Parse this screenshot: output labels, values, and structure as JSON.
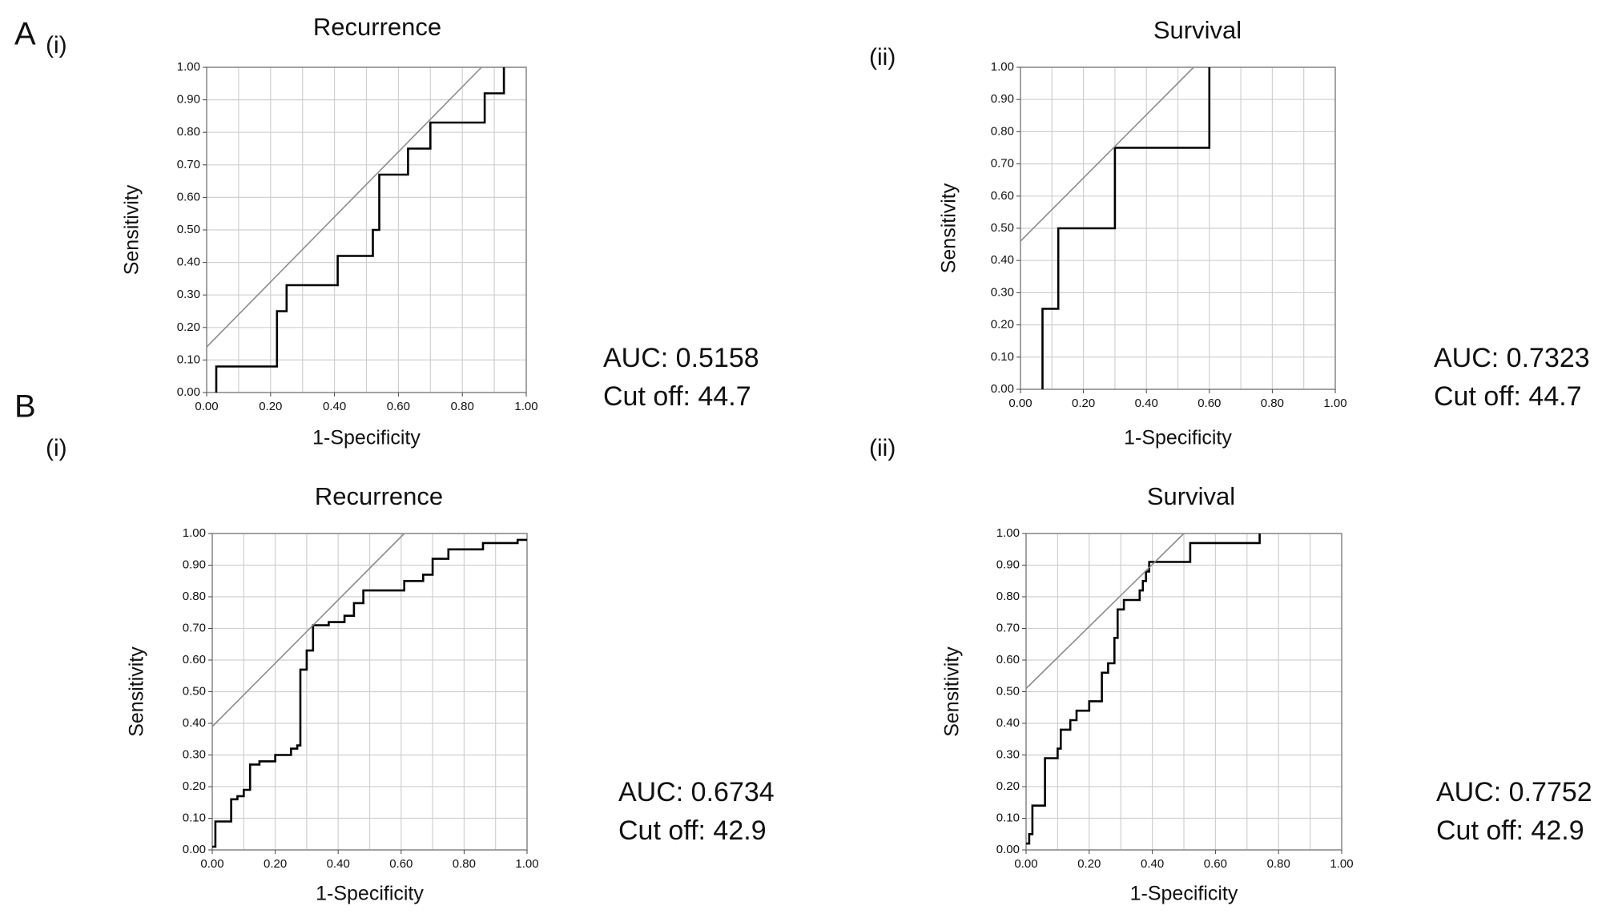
{
  "chart_data": [
    {
      "type": "line",
      "panel": "A",
      "subpanel": "(i)",
      "title": "Recurrence",
      "xlabel": "1-Specificity",
      "ylabel": "Sensitivity",
      "xlim": [
        0,
        1
      ],
      "ylim": [
        0,
        1
      ],
      "grid": true,
      "xticks": [
        {
          "value": 0,
          "label": "0.00"
        },
        {
          "value": 0.2,
          "label": "0.20"
        },
        {
          "value": 0.4,
          "label": "0.40"
        },
        {
          "value": 0.6,
          "label": "0.60"
        },
        {
          "value": 0.8,
          "label": "0.80"
        },
        {
          "value": 1,
          "label": "1.00"
        }
      ],
      "xminorticks": [
        0.1,
        0.3,
        0.5,
        0.7,
        0.9
      ],
      "yticks": [
        {
          "value": 0,
          "label": "0.00"
        },
        {
          "value": 0.1,
          "label": "0.10"
        },
        {
          "value": 0.2,
          "label": "0.20"
        },
        {
          "value": 0.3,
          "label": "0.30"
        },
        {
          "value": 0.4,
          "label": "0.40"
        },
        {
          "value": 0.5,
          "label": "0.50"
        },
        {
          "value": 0.6,
          "label": "0.60"
        },
        {
          "value": 0.7,
          "label": "0.70"
        },
        {
          "value": 0.8,
          "label": "0.80"
        },
        {
          "value": 0.9,
          "label": "0.90"
        },
        {
          "value": 1,
          "label": "1.00"
        }
      ],
      "series": [
        {
          "color": "#000000",
          "x": [
            0.03,
            0.03,
            0.22,
            0.22,
            0.25,
            0.25,
            0.41,
            0.41,
            0.52,
            0.52,
            0.54,
            0.54,
            0.63,
            0.63,
            0.7,
            0.7,
            0.87,
            0.87,
            0.93,
            0.93
          ],
          "values": [
            0,
            0.08,
            0.08,
            0.25,
            0.25,
            0.33,
            0.33,
            0.42,
            0.42,
            0.5,
            0.5,
            0.67,
            0.67,
            0.75,
            0.75,
            0.83,
            0.83,
            0.92,
            0.92,
            1.0
          ]
        },
        {
          "color": "#8c8c8c",
          "x": [
            0,
            0.86
          ],
          "values": [
            0.14,
            1.0
          ]
        }
      ],
      "annotations": [
        "AUC: 0.5158",
        "Cut off: 44.7"
      ]
    },
    {
      "type": "line",
      "subpanel": "(ii)",
      "title": "Survival",
      "xlabel": "1-Specificity",
      "ylabel": "Sensitivity",
      "xlim": [
        0,
        1
      ],
      "ylim": [
        0,
        1
      ],
      "grid": true,
      "xticks": [
        {
          "value": 0,
          "label": "0.00"
        },
        {
          "value": 0.2,
          "label": "0.20"
        },
        {
          "value": 0.4,
          "label": "0.40"
        },
        {
          "value": 0.6,
          "label": "0.60"
        },
        {
          "value": 0.8,
          "label": "0.80"
        },
        {
          "value": 1,
          "label": "1.00"
        }
      ],
      "xminorticks": [
        0.1,
        0.3,
        0.5,
        0.7,
        0.9
      ],
      "yticks": [
        {
          "value": 0,
          "label": "0.00"
        },
        {
          "value": 0.1,
          "label": "0.10"
        },
        {
          "value": 0.2,
          "label": "0.20"
        },
        {
          "value": 0.3,
          "label": "0.30"
        },
        {
          "value": 0.4,
          "label": "0.40"
        },
        {
          "value": 0.5,
          "label": "0.50"
        },
        {
          "value": 0.6,
          "label": "0.60"
        },
        {
          "value": 0.7,
          "label": "0.70"
        },
        {
          "value": 0.8,
          "label": "0.80"
        },
        {
          "value": 0.9,
          "label": "0.90"
        },
        {
          "value": 1,
          "label": "1.00"
        }
      ],
      "series": [
        {
          "color": "#000000",
          "x": [
            0.07,
            0.07,
            0.12,
            0.12,
            0.3,
            0.3,
            0.6,
            0.6
          ],
          "values": [
            0,
            0.25,
            0.25,
            0.5,
            0.5,
            0.75,
            0.75,
            1.0
          ]
        },
        {
          "color": "#8c8c8c",
          "x": [
            0,
            0.55
          ],
          "values": [
            0.46,
            1.0
          ]
        }
      ],
      "annotations": [
        "AUC: 0.7323",
        "Cut off: 44.7"
      ]
    },
    {
      "type": "line",
      "panel": "B",
      "subpanel": "(i)",
      "title": "Recurrence",
      "xlabel": "1-Specificity",
      "ylabel": "Sensitivity",
      "xlim": [
        0,
        1
      ],
      "ylim": [
        0,
        1
      ],
      "grid": true,
      "xticks": [
        {
          "value": 0,
          "label": "0.00"
        },
        {
          "value": 0.2,
          "label": "0.20"
        },
        {
          "value": 0.4,
          "label": "0.40"
        },
        {
          "value": 0.6,
          "label": "0.60"
        },
        {
          "value": 0.8,
          "label": "0.80"
        },
        {
          "value": 1,
          "label": "1.00"
        }
      ],
      "xminorticks": [
        0.1,
        0.3,
        0.5,
        0.7,
        0.9
      ],
      "yticks": [
        {
          "value": 0,
          "label": "0.00"
        },
        {
          "value": 0.1,
          "label": "0.10"
        },
        {
          "value": 0.2,
          "label": "0.20"
        },
        {
          "value": 0.3,
          "label": "0.30"
        },
        {
          "value": 0.4,
          "label": "0.40"
        },
        {
          "value": 0.5,
          "label": "0.50"
        },
        {
          "value": 0.6,
          "label": "0.60"
        },
        {
          "value": 0.7,
          "label": "0.70"
        },
        {
          "value": 0.8,
          "label": "0.80"
        },
        {
          "value": 0.9,
          "label": "0.90"
        },
        {
          "value": 1,
          "label": "1.00"
        }
      ],
      "series": [
        {
          "color": "#000000",
          "x": [
            0,
            0.01,
            0.01,
            0.06,
            0.06,
            0.08,
            0.08,
            0.1,
            0.1,
            0.12,
            0.12,
            0.15,
            0.15,
            0.2,
            0.2,
            0.25,
            0.25,
            0.27,
            0.27,
            0.28,
            0.28,
            0.3,
            0.3,
            0.32,
            0.32,
            0.37,
            0.37,
            0.42,
            0.42,
            0.45,
            0.45,
            0.48,
            0.48,
            0.61,
            0.61,
            0.67,
            0.67,
            0.7,
            0.7,
            0.75,
            0.75,
            0.86,
            0.86,
            0.97,
            0.97,
            1.0
          ],
          "values": [
            0.01,
            0.01,
            0.09,
            0.09,
            0.16,
            0.16,
            0.17,
            0.17,
            0.19,
            0.19,
            0.27,
            0.27,
            0.28,
            0.28,
            0.3,
            0.3,
            0.32,
            0.32,
            0.33,
            0.33,
            0.57,
            0.57,
            0.63,
            0.63,
            0.71,
            0.71,
            0.72,
            0.72,
            0.74,
            0.74,
            0.78,
            0.78,
            0.82,
            0.82,
            0.85,
            0.85,
            0.87,
            0.87,
            0.92,
            0.92,
            0.95,
            0.95,
            0.97,
            0.97,
            0.98,
            0.98
          ]
        },
        {
          "color": "#8c8c8c",
          "x": [
            0,
            0.61
          ],
          "values": [
            0.39,
            1.0
          ]
        }
      ],
      "annotations": [
        "AUC: 0.6734",
        "Cut off: 42.9"
      ]
    },
    {
      "type": "line",
      "subpanel": "(ii)",
      "title": "Survival",
      "xlabel": "1-Specificity",
      "ylabel": "Sensitivity",
      "xlim": [
        0,
        1
      ],
      "ylim": [
        0,
        1
      ],
      "grid": true,
      "xticks": [
        {
          "value": 0,
          "label": "0.00"
        },
        {
          "value": 0.2,
          "label": "0.20"
        },
        {
          "value": 0.4,
          "label": "0.40"
        },
        {
          "value": 0.6,
          "label": "0.60"
        },
        {
          "value": 0.8,
          "label": "0.80"
        },
        {
          "value": 1,
          "label": "1.00"
        }
      ],
      "xminorticks": [
        0.1,
        0.3,
        0.5,
        0.7,
        0.9
      ],
      "yticks": [
        {
          "value": 0,
          "label": "0.00"
        },
        {
          "value": 0.1,
          "label": "0.10"
        },
        {
          "value": 0.2,
          "label": "0.20"
        },
        {
          "value": 0.3,
          "label": "0.30"
        },
        {
          "value": 0.4,
          "label": "0.40"
        },
        {
          "value": 0.5,
          "label": "0.50"
        },
        {
          "value": 0.6,
          "label": "0.60"
        },
        {
          "value": 0.7,
          "label": "0.70"
        },
        {
          "value": 0.8,
          "label": "0.80"
        },
        {
          "value": 0.9,
          "label": "0.90"
        },
        {
          "value": 1,
          "label": "1.00"
        }
      ],
      "series": [
        {
          "color": "#000000",
          "x": [
            0,
            0.01,
            0.01,
            0.02,
            0.02,
            0.06,
            0.06,
            0.1,
            0.1,
            0.11,
            0.11,
            0.14,
            0.14,
            0.16,
            0.16,
            0.2,
            0.2,
            0.24,
            0.24,
            0.26,
            0.26,
            0.28,
            0.28,
            0.29,
            0.29,
            0.31,
            0.31,
            0.36,
            0.36,
            0.37,
            0.37,
            0.38,
            0.38,
            0.39,
            0.39,
            0.52,
            0.52,
            0.74,
            0.74
          ],
          "values": [
            0.02,
            0.02,
            0.05,
            0.05,
            0.14,
            0.14,
            0.29,
            0.29,
            0.32,
            0.32,
            0.38,
            0.38,
            0.41,
            0.41,
            0.44,
            0.44,
            0.47,
            0.47,
            0.56,
            0.56,
            0.59,
            0.59,
            0.67,
            0.67,
            0.76,
            0.76,
            0.79,
            0.79,
            0.82,
            0.82,
            0.85,
            0.85,
            0.88,
            0.88,
            0.91,
            0.91,
            0.97,
            0.97,
            1.0
          ]
        },
        {
          "color": "#8c8c8c",
          "x": [
            0,
            0.5
          ],
          "values": [
            0.51,
            1.0
          ]
        }
      ],
      "annotations": [
        "AUC: 0.7752",
        "Cut off: 42.9"
      ]
    }
  ]
}
